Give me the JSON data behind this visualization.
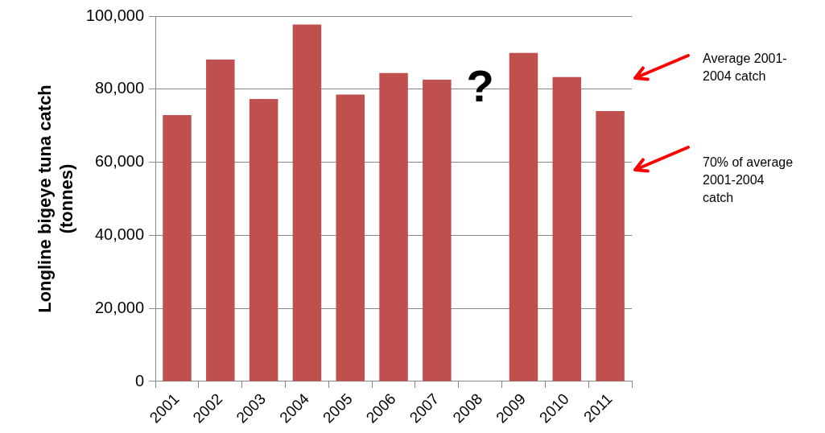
{
  "chart_data": {
    "type": "bar",
    "ylabel": "Longline bigeye tuna catch\n(tonnes)",
    "categories": [
      "2001",
      "2002",
      "2003",
      "2004",
      "2005",
      "2006",
      "2007",
      "2008",
      "2009",
      "2010",
      "2011"
    ],
    "values": [
      72900,
      88100,
      77300,
      97700,
      78500,
      84400,
      82600,
      null,
      89900,
      83300,
      74000
    ],
    "color": "#c0504d",
    "ylim": [
      0,
      100000
    ],
    "yticks": [
      0,
      {
        "value": 20000,
        "label": "20,000"
      },
      {
        "value": 40000,
        "label": "40,000"
      },
      {
        "value": 60000,
        "label": "60,000"
      },
      {
        "value": 80000,
        "label": "80,000"
      },
      {
        "value": 100000,
        "label": "100,000"
      }
    ],
    "grid": "y",
    "legend": false,
    "annotations": [
      "?",
      "Average 2001-2004 catch",
      "70% of average 2001-2004 catch"
    ]
  }
}
